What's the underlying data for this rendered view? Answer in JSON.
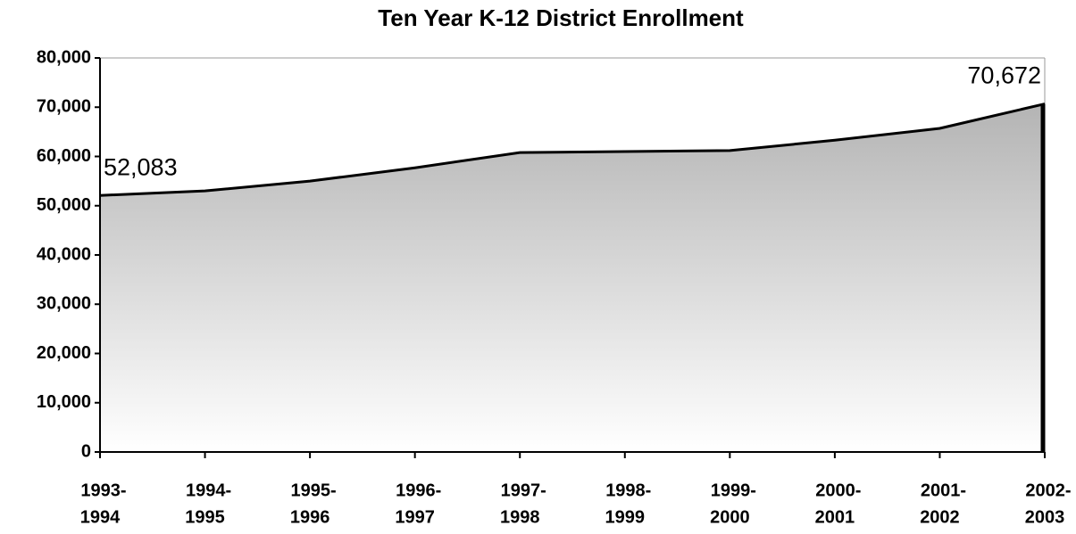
{
  "chart_data": {
    "type": "area",
    "title": "Ten Year K-12 District Enrollment",
    "categories": [
      [
        "1993-",
        "1994"
      ],
      [
        "1994-",
        "1995"
      ],
      [
        "1995-",
        "1996"
      ],
      [
        "1996-",
        "1997"
      ],
      [
        "1997-",
        "1998"
      ],
      [
        "1998-",
        "1999"
      ],
      [
        "1999-",
        "2000"
      ],
      [
        "2000-",
        "2001"
      ],
      [
        "2001-",
        "2002"
      ],
      [
        "2002-",
        "2003"
      ]
    ],
    "values": [
      52083,
      53000,
      55000,
      57700,
      60800,
      61000,
      61200,
      63300,
      65700,
      70672
    ],
    "value_labels": [
      "52,083",
      null,
      null,
      null,
      null,
      null,
      null,
      null,
      null,
      "70,672"
    ],
    "color": "#b4b4b4",
    "ylim": [
      0,
      80000
    ],
    "yticks": [
      0,
      {
        "value": 10000,
        "label": "10,000"
      },
      {
        "value": 20000,
        "label": "20,000"
      },
      {
        "value": 30000,
        "label": "30,000"
      },
      {
        "value": 40000,
        "label": "40,000"
      },
      {
        "value": 50000,
        "label": "50,000"
      },
      {
        "value": 60000,
        "label": "60,000"
      },
      {
        "value": 70000,
        "label": "70,000"
      },
      {
        "value": 80000,
        "label": "80,000"
      }
    ],
    "grid": false
  }
}
